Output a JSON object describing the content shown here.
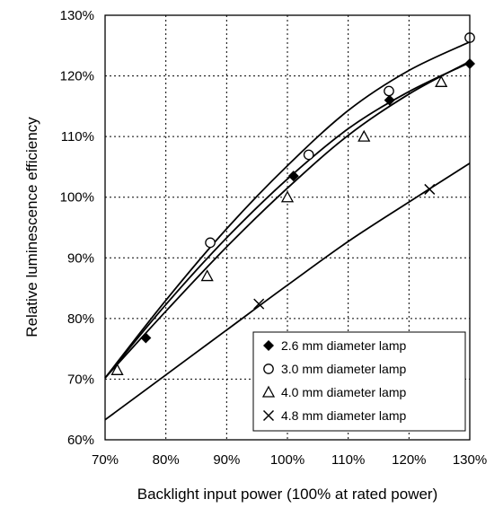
{
  "chart_data": {
    "type": "scatter",
    "title": "",
    "xlabel": "Backlight input power (100% at rated power)",
    "ylabel": "Relative luminescence efficiency",
    "xlim": [
      70,
      130
    ],
    "ylim": [
      60,
      130
    ],
    "x_ticks": [
      70,
      80,
      90,
      100,
      110,
      120,
      130
    ],
    "y_ticks": [
      60,
      70,
      80,
      90,
      100,
      110,
      120,
      130
    ],
    "x_tick_labels": [
      "70%",
      "80%",
      "90%",
      "100%",
      "110%",
      "120%",
      "130%"
    ],
    "y_tick_labels": [
      "60%",
      "70%",
      "80%",
      "90%",
      "100%",
      "110%",
      "120%",
      "130%"
    ],
    "grid": true,
    "grid_style": "dotted",
    "legend_position": "bottom-right",
    "series": [
      {
        "name": "2.6 mm diameter lamp",
        "marker": "filled-diamond",
        "points": [
          [
            76.7,
            76.8
          ],
          [
            101.0,
            103.5
          ],
          [
            116.8,
            116.0
          ],
          [
            130.0,
            122.0
          ]
        ],
        "trend": [
          [
            70,
            70.2
          ],
          [
            80,
            82.3
          ],
          [
            90,
            93.3
          ],
          [
            100,
            103.0
          ],
          [
            110,
            111.3
          ],
          [
            120,
            117.4
          ],
          [
            130,
            122.2
          ]
        ]
      },
      {
        "name": "3.0 mm diameter lamp",
        "marker": "open-circle",
        "points": [
          [
            87.3,
            92.5
          ],
          [
            103.5,
            107.0
          ],
          [
            116.7,
            117.5
          ],
          [
            130.0,
            126.3
          ]
        ],
        "trend": [
          [
            70,
            70.2
          ],
          [
            80,
            83.0
          ],
          [
            90,
            94.8
          ],
          [
            100,
            105.2
          ],
          [
            110,
            114.3
          ],
          [
            120,
            120.9
          ],
          [
            130,
            125.6
          ]
        ]
      },
      {
        "name": "4.0 mm diameter lamp",
        "marker": "open-triangle",
        "points": [
          [
            72.0,
            71.5
          ],
          [
            86.8,
            87.0
          ],
          [
            100.0,
            100.0
          ],
          [
            112.6,
            110.0
          ],
          [
            125.3,
            119.0
          ]
        ],
        "trend": [
          [
            70,
            70.2
          ],
          [
            80,
            81.2
          ],
          [
            90,
            91.8
          ],
          [
            100,
            101.5
          ],
          [
            110,
            110.2
          ],
          [
            120,
            117.0
          ],
          [
            130,
            122.4
          ]
        ]
      },
      {
        "name": "4.8 mm diameter lamp",
        "marker": "x-cross",
        "points": [
          [
            95.3,
            82.4
          ],
          [
            123.4,
            101.3
          ]
        ],
        "trend": [
          [
            70,
            63.3
          ],
          [
            80,
            70.7
          ],
          [
            90,
            78.1
          ],
          [
            100,
            85.5
          ],
          [
            110,
            92.7
          ],
          [
            120,
            99.2
          ],
          [
            130,
            105.6
          ]
        ]
      }
    ]
  }
}
